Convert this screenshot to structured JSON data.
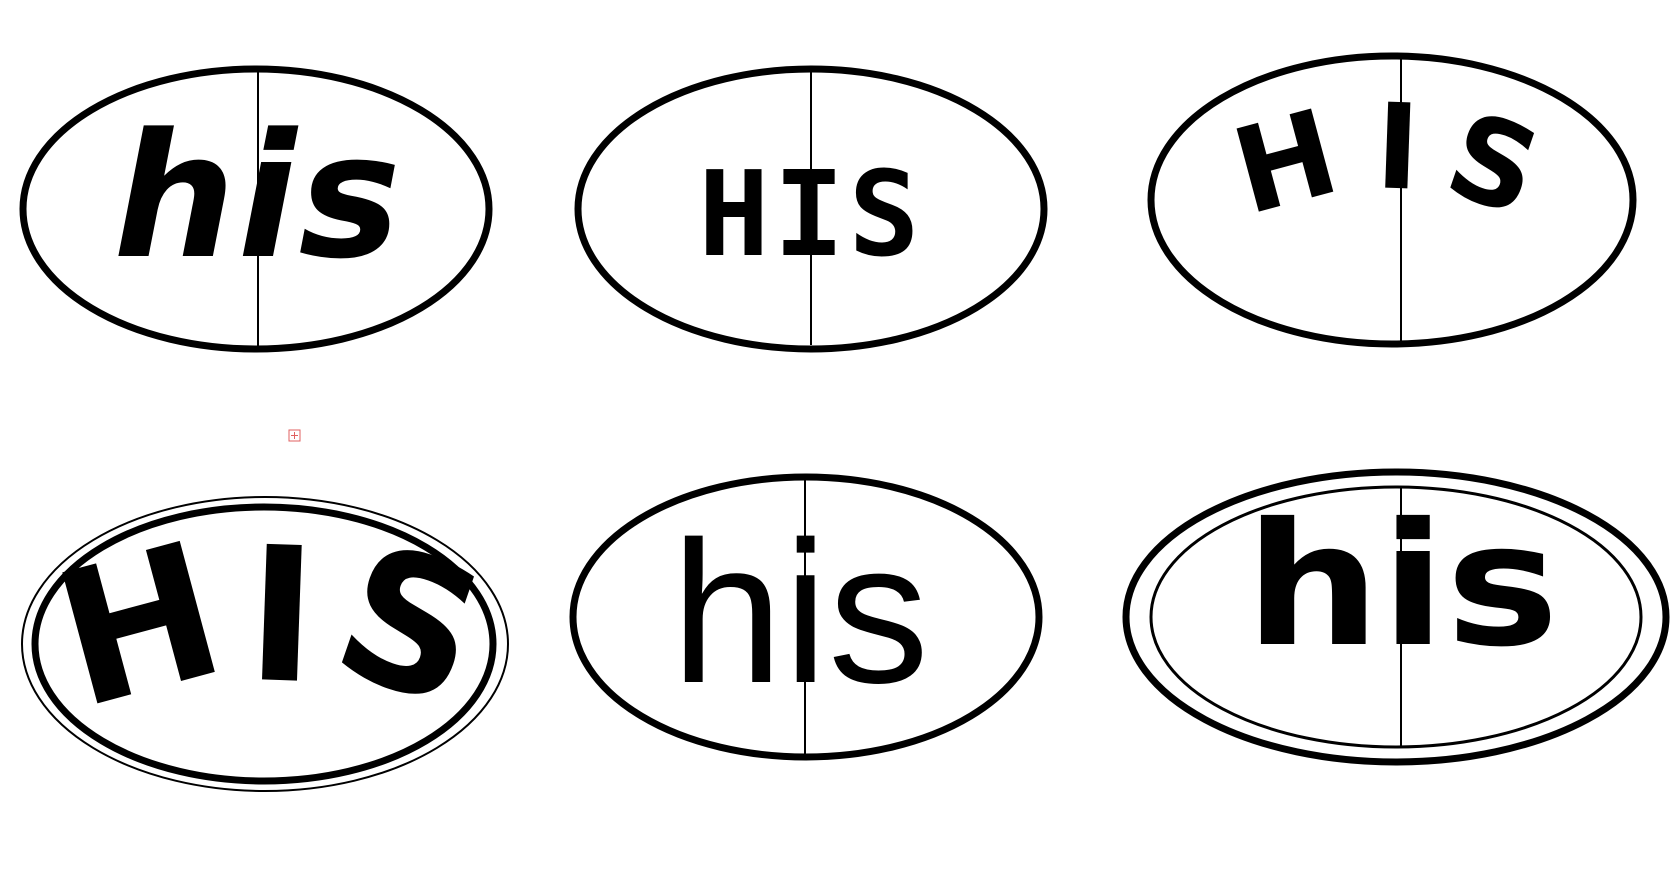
{
  "logos": [
    {
      "id": "logo-1",
      "text": "his",
      "style": "italic-lowercase",
      "divider": true
    },
    {
      "id": "logo-2",
      "text": "HIS",
      "style": "blocky-uppercase",
      "divider": true
    },
    {
      "id": "logo-3",
      "text": "HIS",
      "style": "arched-uppercase",
      "divider": true
    },
    {
      "id": "logo-4",
      "text": "HIS",
      "style": "arched-uppercase-large",
      "divider": false
    },
    {
      "id": "logo-5",
      "text": "his",
      "style": "geometric-lowercase",
      "divider": true
    },
    {
      "id": "logo-6",
      "text": "his",
      "style": "wide-lowercase",
      "divider": true
    }
  ],
  "colors": {
    "ink": "#000000",
    "background": "#ffffff",
    "handle_marker": "#e06060"
  },
  "icons": {
    "selection_handle": "plus-square-icon"
  }
}
